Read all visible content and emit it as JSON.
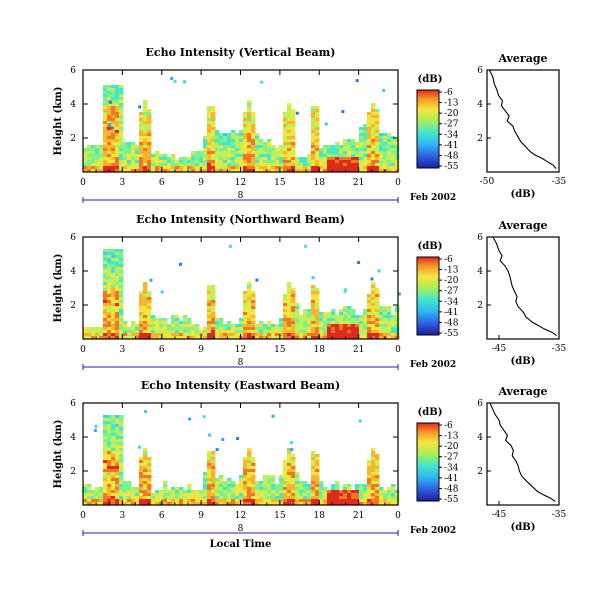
{
  "chart_data": [
    {
      "type": "heatmap",
      "title": "Echo Intensity (Vertical Beam)",
      "ylabel": "Height (km)",
      "xlabel": "",
      "x_ticks": [
        "0",
        "3",
        "6",
        "9",
        "12",
        "15",
        "18",
        "21",
        "0"
      ],
      "y_ticks": [
        "2",
        "4",
        "6"
      ],
      "xlim": [
        0,
        24
      ],
      "ylim": [
        0,
        6
      ],
      "date_label": "8",
      "date_suffix": "Feb 2002",
      "colorbar": {
        "unit": "(dB)",
        "ticks": [
          "-6",
          "-13",
          "-20",
          "-27",
          "-34",
          "-41",
          "-48",
          "-55"
        ]
      },
      "profile": {
        "title": "Average",
        "xlabel": "(dB)",
        "x_ticks": [
          "-50",
          "-35"
        ],
        "xlim": [
          -50,
          -35
        ],
        "y_ticks": [
          "2",
          "4",
          "6"
        ],
        "x": [
          -49.5,
          -48.8,
          -48.5,
          -47.9,
          -47.6,
          -46.8,
          -47.0,
          -46.2,
          -45.4,
          -45.8,
          -44.6,
          -44.2,
          -43.6,
          -43.0,
          -42.0,
          -41.0,
          -40.0,
          -38.5,
          -37.4,
          -36.2,
          -35.6
        ],
        "y": [
          6.0,
          5.6,
          5.2,
          4.8,
          4.5,
          4.2,
          3.9,
          3.6,
          3.3,
          3.0,
          2.7,
          2.4,
          2.1,
          1.8,
          1.5,
          1.2,
          1.0,
          0.8,
          0.6,
          0.4,
          0.2
        ]
      }
    },
    {
      "type": "heatmap",
      "title": "Echo Intensity (Northward Beam)",
      "ylabel": "Height (km)",
      "xlabel": "",
      "x_ticks": [
        "0",
        "3",
        "6",
        "9",
        "12",
        "15",
        "18",
        "21",
        "0"
      ],
      "y_ticks": [
        "2",
        "4",
        "6"
      ],
      "xlim": [
        0,
        24
      ],
      "ylim": [
        0,
        6
      ],
      "date_label": "8",
      "date_suffix": "Feb 2002",
      "colorbar": {
        "unit": "(dB)",
        "ticks": [
          "-6",
          "-13",
          "-20",
          "-27",
          "-34",
          "-41",
          "-48",
          "-55"
        ]
      },
      "profile": {
        "title": "Average",
        "xlabel": "(dB)",
        "x_ticks": [
          "-45",
          "-35"
        ],
        "xlim": [
          -47,
          -35
        ],
        "y_ticks": [
          "2",
          "4",
          "6"
        ],
        "x": [
          -46.0,
          -45.4,
          -45.0,
          -44.5,
          -44.8,
          -44.0,
          -43.5,
          -43.2,
          -43.0,
          -42.8,
          -42.4,
          -42.0,
          -42.2,
          -41.8,
          -41.0,
          -40.5,
          -39.5,
          -38.5,
          -37.5,
          -36.2,
          -35.4
        ],
        "y": [
          6.0,
          5.6,
          5.2,
          4.9,
          4.6,
          4.3,
          4.0,
          3.7,
          3.4,
          3.1,
          2.8,
          2.5,
          2.2,
          1.9,
          1.6,
          1.3,
          1.0,
          0.8,
          0.6,
          0.4,
          0.2
        ]
      }
    },
    {
      "type": "heatmap",
      "title": "Echo Intensity (Eastward Beam)",
      "ylabel": "Height (km)",
      "xlabel": "Local Time",
      "x_ticks": [
        "0",
        "3",
        "6",
        "9",
        "12",
        "15",
        "18",
        "21",
        "0"
      ],
      "y_ticks": [
        "2",
        "4",
        "6"
      ],
      "xlim": [
        0,
        24
      ],
      "ylim": [
        0,
        6
      ],
      "date_label": "8",
      "date_suffix": "Feb 2002",
      "colorbar": {
        "unit": "(dB)",
        "ticks": [
          "-6",
          "-13",
          "-20",
          "-27",
          "-34",
          "-41",
          "-48",
          "-55"
        ]
      },
      "profile": {
        "title": "Average",
        "xlabel": "(dB)",
        "x_ticks": [
          "-45",
          "-35"
        ],
        "xlim": [
          -47,
          -35
        ],
        "y_ticks": [
          "2",
          "4",
          "6"
        ],
        "x": [
          -46.5,
          -46.0,
          -45.6,
          -45.0,
          -44.8,
          -44.2,
          -43.6,
          -43.9,
          -43.0,
          -42.6,
          -42.8,
          -42.2,
          -41.8,
          -41.6,
          -41.2,
          -40.4,
          -39.5,
          -38.6,
          -37.6,
          -36.4,
          -35.6
        ],
        "y": [
          6.0,
          5.6,
          5.3,
          5.0,
          4.7,
          4.4,
          4.1,
          3.8,
          3.5,
          3.2,
          2.9,
          2.6,
          2.3,
          2.0,
          1.7,
          1.4,
          1.1,
          0.8,
          0.6,
          0.4,
          0.2
        ]
      }
    }
  ]
}
